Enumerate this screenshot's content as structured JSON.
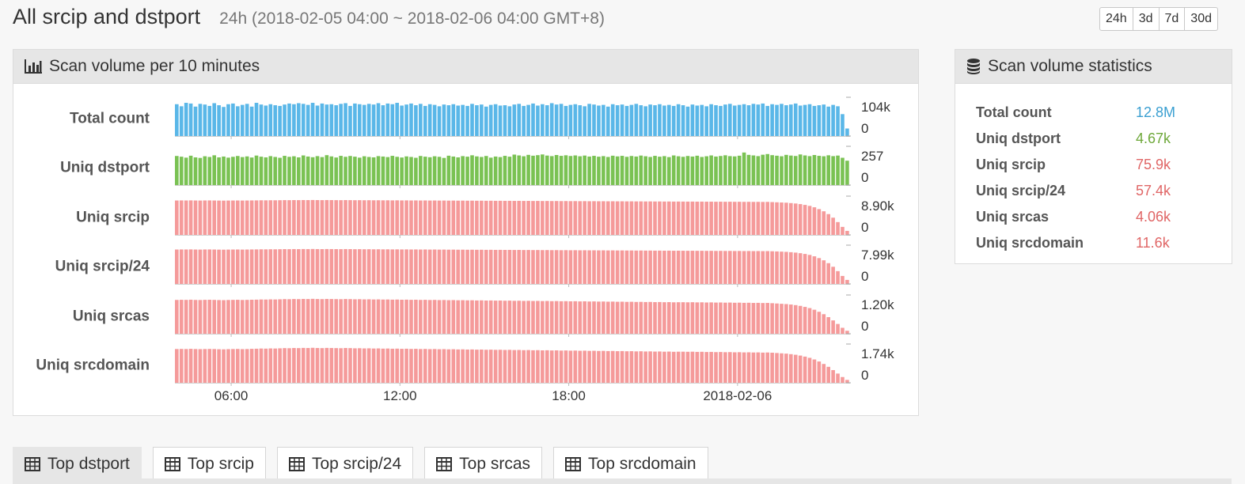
{
  "page": {
    "title": "All srcip and dstport",
    "range": "24h (2018-02-05 04:00 ~ 2018-02-06 04:00 GMT+8)"
  },
  "range_buttons": [
    "24h",
    "3d",
    "7d",
    "30d"
  ],
  "chart_panel": {
    "title": "Scan volume per 10 minutes",
    "icon": "bar-chart-icon"
  },
  "stats_panel": {
    "title": "Scan volume statistics",
    "icon": "database-icon"
  },
  "stats": [
    {
      "label": "Total count",
      "value": "12.8M",
      "color": "#3a9fd1"
    },
    {
      "label": "Uniq dstport",
      "value": "4.67k",
      "color": "#6ea83a"
    },
    {
      "label": "Uniq srcip",
      "value": "75.9k",
      "color": "#e06666"
    },
    {
      "label": "Uniq srcip/24",
      "value": "57.4k",
      "color": "#e06666"
    },
    {
      "label": "Uniq srcas",
      "value": "4.06k",
      "color": "#e06666"
    },
    {
      "label": "Uniq srcdomain",
      "value": "11.6k",
      "color": "#e06666"
    }
  ],
  "tabs": [
    {
      "label": "Top dstport",
      "active": true
    },
    {
      "label": "Top srcip",
      "active": false
    },
    {
      "label": "Top srcip/24",
      "active": false
    },
    {
      "label": "Top srcas",
      "active": false
    },
    {
      "label": "Top srcdomain",
      "active": false
    }
  ],
  "chart_data": {
    "type": "bar",
    "bar_count": 144,
    "x_range": [
      "2018-02-05 04:00",
      "2018-02-06 04:00"
    ],
    "x_ticks": [
      "06:00",
      "12:00",
      "18:00",
      "2018-02-06"
    ],
    "series": [
      {
        "name": "Total count",
        "color": "#5ab7e8",
        "max_label": "104k",
        "min_label": "0",
        "ylim": [
          0,
          104000
        ],
        "values": [
          93000,
          87000,
          97000,
          95000,
          86000,
          94000,
          92000,
          88000,
          96000,
          90000,
          85000,
          93000,
          95000,
          87000,
          91000,
          94000,
          86000,
          97000,
          92000,
          89000,
          93000,
          90000,
          88000,
          92000,
          95000,
          93000,
          96000,
          94000,
          91000,
          97000,
          89000,
          95000,
          92000,
          93000,
          90000,
          94000,
          96000,
          88000,
          95000,
          93000,
          91000,
          94000,
          92000,
          96000,
          90000,
          95000,
          93000,
          97000,
          89000,
          92000,
          95000,
          90000,
          94000,
          88000,
          93000,
          91000,
          87000,
          92000,
          90000,
          93000,
          89000,
          91000,
          88000,
          94000,
          90000,
          92000,
          86000,
          91000,
          93000,
          89000,
          90000,
          87000,
          92000,
          94000,
          88000,
          91000,
          95000,
          89000,
          93000,
          90000,
          96000,
          92000,
          94000,
          88000,
          91000,
          93000,
          90000,
          87000,
          94000,
          92000,
          89000,
          91000,
          86000,
          93000,
          90000,
          92000,
          88000,
          91000,
          94000,
          90000,
          87000,
          92000,
          90000,
          93000,
          89000,
          91000,
          88000,
          93000,
          90000,
          86000,
          92000,
          89000,
          91000,
          87000,
          93000,
          90000,
          88000,
          92000,
          94000,
          89000,
          91000,
          93000,
          90000,
          94000,
          92000,
          95000,
          88000,
          93000,
          91000,
          94000,
          90000,
          92000,
          95000,
          89000,
          91000,
          93000,
          88000,
          90000,
          92000,
          86000,
          91000,
          87000,
          64000,
          22000
        ]
      },
      {
        "name": "Uniq dstport",
        "color": "#7ac253",
        "max_label": "257",
        "min_label": "0",
        "ylim": [
          0,
          257
        ],
        "values": [
          210,
          205,
          198,
          212,
          200,
          196,
          208,
          203,
          215,
          200,
          206,
          198,
          204,
          210,
          202,
          207,
          199,
          213,
          205,
          200,
          209,
          203,
          197,
          211,
          204,
          208,
          200,
          214,
          206,
          201,
          209,
          202,
          216,
          207,
          199,
          211,
          204,
          210,
          205,
          198,
          208,
          203,
          200,
          209,
          206,
          202,
          211,
          204,
          199,
          207,
          203,
          197,
          210,
          205,
          201,
          208,
          204,
          196,
          212,
          206,
          200,
          209,
          205,
          215,
          207,
          203,
          210,
          198,
          206,
          202,
          211,
          205,
          220,
          214,
          208,
          218,
          212,
          216,
          221,
          213,
          209,
          217,
          211,
          215,
          210,
          214,
          208,
          213,
          206,
          211,
          205,
          209,
          203,
          212,
          207,
          211,
          204,
          210,
          206,
          213,
          208,
          203,
          211,
          205,
          209,
          202,
          214,
          208,
          204,
          210,
          206,
          212,
          203,
          208,
          214,
          206,
          210,
          215,
          209,
          207,
          212,
          235,
          218,
          214,
          209,
          219,
          224,
          216,
          212,
          208,
          218,
          213,
          210,
          221,
          214,
          209,
          217,
          211,
          208,
          215,
          209,
          213,
          197,
          176
        ]
      },
      {
        "name": "Uniq srcip",
        "color": "#f59a9a",
        "max_label": "8.90k",
        "min_label": "0",
        "ylim": [
          0,
          8900
        ],
        "values": [
          8600,
          8620,
          8610,
          8630,
          8600,
          8590,
          8610,
          8620,
          8600,
          8580,
          8570,
          8590,
          8600,
          8610,
          8590,
          8600,
          8620,
          8630,
          8650,
          8640,
          8660,
          8650,
          8670,
          8690,
          8680,
          8700,
          8690,
          8710,
          8700,
          8720,
          8700,
          8690,
          8710,
          8700,
          8690,
          8680,
          8700,
          8690,
          8670,
          8680,
          8660,
          8670,
          8650,
          8660,
          8640,
          8650,
          8630,
          8640,
          8620,
          8630,
          8610,
          8620,
          8600,
          8610,
          8590,
          8600,
          8580,
          8590,
          8570,
          8580,
          8560,
          8570,
          8550,
          8560,
          8540,
          8550,
          8530,
          8540,
          8520,
          8530,
          8510,
          8520,
          8500,
          8510,
          8490,
          8500,
          8480,
          8490,
          8470,
          8480,
          8460,
          8470,
          8450,
          8460,
          8440,
          8450,
          8430,
          8440,
          8420,
          8430,
          8410,
          8420,
          8400,
          8410,
          8390,
          8400,
          8380,
          8390,
          8370,
          8380,
          8360,
          8370,
          8350,
          8360,
          8340,
          8350,
          8330,
          8340,
          8330,
          8320,
          8330,
          8310,
          8320,
          8300,
          8310,
          8290,
          8300,
          8280,
          8290,
          8270,
          8280,
          8260,
          8270,
          8250,
          8260,
          8240,
          8250,
          8200,
          8150,
          8100,
          8050,
          7950,
          7850,
          7700,
          7500,
          7250,
          6900,
          6450,
          5900,
          5200,
          4300,
          3200,
          2000,
          1000
        ]
      },
      {
        "name": "Uniq srcip/24",
        "color": "#f59a9a",
        "max_label": "7.99k",
        "min_label": "0",
        "ylim": [
          0,
          7990
        ],
        "values": [
          7720,
          7740,
          7730,
          7750,
          7720,
          7710,
          7730,
          7740,
          7720,
          7700,
          7690,
          7710,
          7720,
          7730,
          7710,
          7720,
          7740,
          7750,
          7770,
          7760,
          7780,
          7770,
          7790,
          7810,
          7800,
          7820,
          7810,
          7830,
          7820,
          7840,
          7820,
          7810,
          7830,
          7820,
          7810,
          7800,
          7820,
          7810,
          7790,
          7800,
          7780,
          7790,
          7770,
          7780,
          7760,
          7770,
          7750,
          7760,
          7740,
          7750,
          7730,
          7740,
          7720,
          7730,
          7710,
          7720,
          7700,
          7710,
          7690,
          7700,
          7680,
          7690,
          7670,
          7680,
          7660,
          7670,
          7650,
          7660,
          7640,
          7650,
          7630,
          7640,
          7620,
          7630,
          7610,
          7620,
          7600,
          7610,
          7590,
          7600,
          7580,
          7590,
          7570,
          7580,
          7560,
          7570,
          7550,
          7560,
          7540,
          7550,
          7530,
          7540,
          7520,
          7530,
          7510,
          7520,
          7500,
          7510,
          7490,
          7500,
          7480,
          7490,
          7470,
          7480,
          7460,
          7470,
          7450,
          7460,
          7450,
          7440,
          7450,
          7430,
          7440,
          7420,
          7430,
          7410,
          7420,
          7400,
          7410,
          7390,
          7400,
          7380,
          7390,
          7370,
          7380,
          7360,
          7370,
          7330,
          7290,
          7250,
          7200,
          7120,
          7030,
          6900,
          6730,
          6510,
          6200,
          5800,
          5300,
          4660,
          3850,
          2870,
          1790,
          900
        ]
      },
      {
        "name": "Uniq srcas",
        "color": "#f59a9a",
        "max_label": "1.20k",
        "min_label": "0",
        "ylim": [
          0,
          1200
        ],
        "values": [
          1140,
          1145,
          1142,
          1148,
          1140,
          1138,
          1143,
          1146,
          1141,
          1136,
          1133,
          1139,
          1142,
          1145,
          1139,
          1142,
          1147,
          1150,
          1156,
          1153,
          1159,
          1156,
          1162,
          1168,
          1165,
          1171,
          1168,
          1174,
          1171,
          1177,
          1171,
          1168,
          1174,
          1171,
          1168,
          1165,
          1171,
          1168,
          1162,
          1165,
          1159,
          1162,
          1156,
          1159,
          1153,
          1156,
          1150,
          1153,
          1147,
          1150,
          1144,
          1147,
          1141,
          1144,
          1138,
          1141,
          1135,
          1138,
          1132,
          1135,
          1129,
          1132,
          1126,
          1129,
          1123,
          1126,
          1120,
          1123,
          1117,
          1120,
          1114,
          1117,
          1111,
          1114,
          1108,
          1111,
          1105,
          1108,
          1102,
          1105,
          1099,
          1102,
          1096,
          1099,
          1093,
          1096,
          1090,
          1093,
          1087,
          1090,
          1084,
          1087,
          1081,
          1084,
          1078,
          1081,
          1075,
          1078,
          1072,
          1075,
          1069,
          1072,
          1066,
          1069,
          1063,
          1066,
          1060,
          1063,
          1063,
          1060,
          1063,
          1057,
          1060,
          1054,
          1057,
          1051,
          1054,
          1048,
          1051,
          1045,
          1048,
          1042,
          1045,
          1039,
          1042,
          1036,
          1039,
          1030,
          1020,
          1010,
          1000,
          985,
          965,
          940,
          905,
          865,
          810,
          740,
          660,
          560,
          450,
          330,
          200,
          100
        ]
      },
      {
        "name": "Uniq srcdomain",
        "color": "#f59a9a",
        "max_label": "1.74k",
        "min_label": "0",
        "ylim": [
          0,
          1740
        ],
        "values": [
          1650,
          1655,
          1650,
          1660,
          1650,
          1645,
          1650,
          1655,
          1650,
          1640,
          1635,
          1645,
          1650,
          1655,
          1645,
          1650,
          1660,
          1665,
          1675,
          1670,
          1680,
          1675,
          1685,
          1695,
          1690,
          1700,
          1695,
          1705,
          1700,
          1710,
          1700,
          1695,
          1705,
          1700,
          1695,
          1690,
          1700,
          1695,
          1685,
          1690,
          1680,
          1685,
          1675,
          1680,
          1670,
          1675,
          1665,
          1670,
          1660,
          1665,
          1655,
          1660,
          1650,
          1655,
          1645,
          1650,
          1640,
          1645,
          1635,
          1640,
          1630,
          1635,
          1625,
          1630,
          1620,
          1625,
          1615,
          1620,
          1610,
          1615,
          1605,
          1610,
          1600,
          1605,
          1595,
          1600,
          1590,
          1595,
          1585,
          1590,
          1580,
          1585,
          1575,
          1580,
          1570,
          1575,
          1565,
          1570,
          1560,
          1565,
          1555,
          1560,
          1550,
          1555,
          1545,
          1550,
          1540,
          1545,
          1535,
          1540,
          1530,
          1535,
          1525,
          1530,
          1520,
          1525,
          1515,
          1520,
          1520,
          1515,
          1520,
          1510,
          1515,
          1505,
          1510,
          1500,
          1505,
          1495,
          1500,
          1490,
          1495,
          1485,
          1490,
          1480,
          1485,
          1475,
          1480,
          1470,
          1455,
          1440,
          1425,
          1400,
          1370,
          1330,
          1280,
          1220,
          1140,
          1040,
          920,
          780,
          620,
          450,
          280,
          140
        ]
      }
    ]
  }
}
